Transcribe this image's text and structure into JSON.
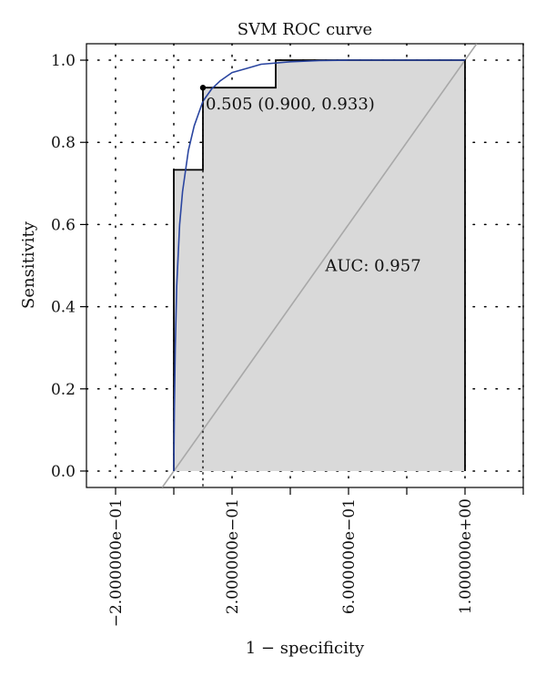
{
  "chart_data": {
    "type": "line",
    "title": "SVM ROC curve",
    "xlabel": "1 − specificity",
    "ylabel": "Sensitivity",
    "xlim": [
      -0.3,
      1.2
    ],
    "ylim": [
      -0.04,
      1.04
    ],
    "x_ticks": [
      -0.2,
      0.0,
      0.2,
      0.4,
      0.6,
      0.8,
      1.0,
      1.2
    ],
    "x_tick_labels": [
      "−2.000000e−01",
      "2.000000e−01",
      "6.000000e−01",
      "1.000000e+00"
    ],
    "x_tick_label_positions": [
      -0.2,
      0.2,
      0.6,
      1.0
    ],
    "y_ticks": [
      0.0,
      0.2,
      0.4,
      0.6,
      0.8,
      1.0
    ],
    "y_tick_labels": [
      "0.0",
      "0.2",
      "0.4",
      "0.6",
      "0.8",
      "1.0"
    ],
    "grid": "dotted",
    "auc_label": "AUC: 0.957",
    "auc_label_pos": [
      0.52,
      0.5
    ],
    "threshold_label": "0.505 (0.900, 0.933)",
    "threshold_point": [
      0.1,
      0.933
    ],
    "colors": {
      "empirical": "#000000",
      "smooth": "#2a45a0",
      "diagonal": "#a8a8a8",
      "fill": "#d9d9d9",
      "grid": "#000000"
    },
    "series": [
      {
        "name": "",
        "style": "step",
        "x": [
          0.0,
          0.0,
          0.1,
          0.1,
          0.35,
          0.35,
          1.0,
          1.0
        ],
        "y": [
          0.0,
          0.733,
          0.733,
          0.933,
          0.933,
          1.0,
          1.0,
          0.0
        ]
      },
      {
        "name": "",
        "style": "smooth",
        "x": [
          0.0,
          0.002,
          0.005,
          0.01,
          0.02,
          0.03,
          0.05,
          0.07,
          0.1,
          0.13,
          0.16,
          0.2,
          0.25,
          0.3,
          0.4,
          0.5,
          0.6,
          0.8,
          1.0
        ],
        "y": [
          0.0,
          0.15,
          0.3,
          0.45,
          0.6,
          0.68,
          0.78,
          0.84,
          0.9,
          0.93,
          0.95,
          0.97,
          0.98,
          0.99,
          0.996,
          0.999,
          1.0,
          1.0,
          1.0
        ]
      },
      {
        "name": "",
        "style": "diagonal",
        "x": [
          -0.04,
          1.04
        ],
        "y": [
          -0.04,
          1.04
        ]
      }
    ]
  }
}
